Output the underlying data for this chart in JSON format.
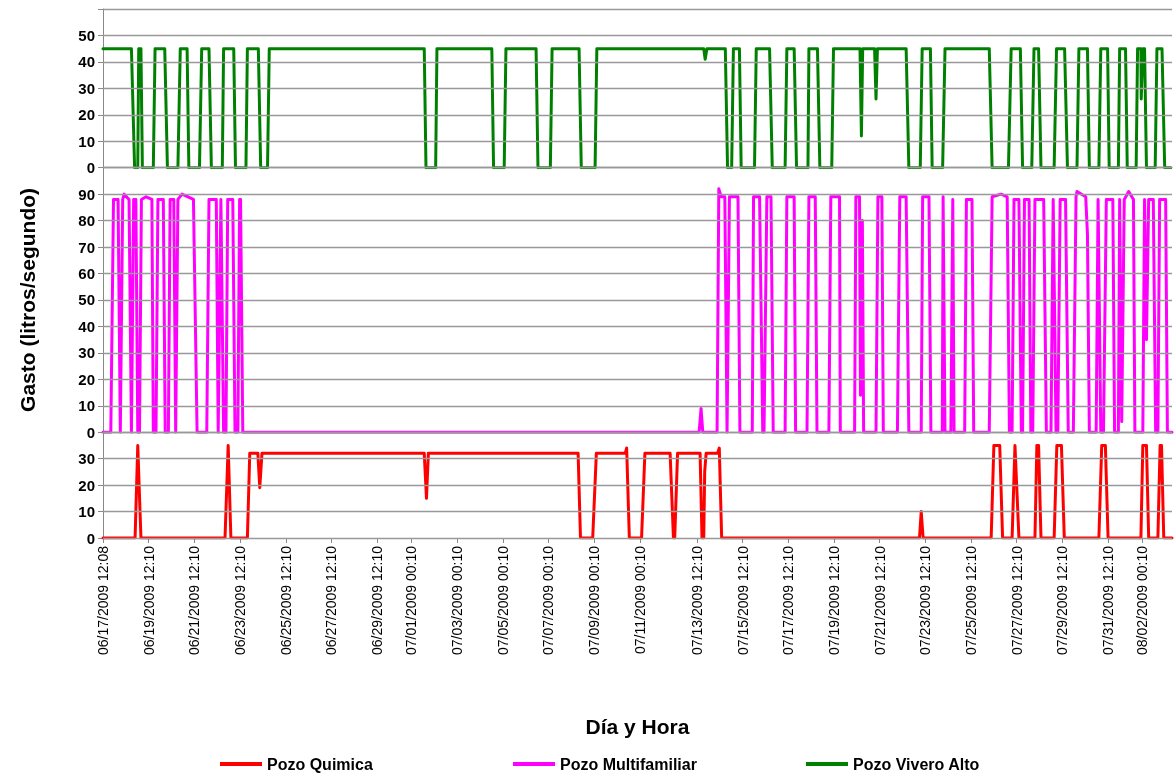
{
  "chart_data": [
    {
      "type": "line",
      "legend": "bottom",
      "grid": "y",
      "tick_labels": "y",
      "xlim": [
        "2009-06-17T12:08",
        "2009-08-03T07:20"
      ],
      "ylim": [
        0,
        60
      ],
      "yticks": [
        0,
        10,
        20,
        30,
        40,
        50,
        {
          "value": 60,
          "label": null
        }
      ],
      "series": [
        {
          "name": "Pozo Vivero Alto",
          "color": "#008000",
          "x": [
            "2009-06-17T12:08",
            "2009-06-18T18:00",
            "2009-06-18T21:20",
            "2009-06-19T00:40",
            "2009-06-19T01:40",
            "2009-06-19T04:00",
            "2009-06-19T05:30",
            "2009-06-19T17:00",
            "2009-06-19T18:50",
            "2009-06-20T05:00",
            "2009-06-20T07:50",
            "2009-06-20T18:50",
            "2009-06-20T21:20",
            "2009-06-21T04:30",
            "2009-06-21T06:20",
            "2009-06-21T17:30",
            "2009-06-21T19:50",
            "2009-06-22T03:30",
            "2009-06-22T06:00",
            "2009-06-22T17:30",
            "2009-06-22T18:50",
            "2009-06-23T05:30",
            "2009-06-23T07:20",
            "2009-06-23T18:20",
            "2009-06-23T19:50",
            "2009-06-24T07:20",
            "2009-06-24T09:50",
            "2009-06-24T17:00",
            "2009-06-24T18:50",
            "2009-07-01T13:40",
            "2009-07-01T15:30",
            "2009-07-02T01:40",
            "2009-07-02T03:00",
            "2009-07-04T12:40",
            "2009-07-04T14:30",
            "2009-07-05T01:40",
            "2009-07-05T03:30",
            "2009-07-06T11:10",
            "2009-07-06T13:10",
            "2009-07-07T02:10",
            "2009-07-07T04:00",
            "2009-07-08T08:20",
            "2009-07-08T10:40",
            "2009-07-09T01:10",
            "2009-07-09T03:00",
            "2009-07-13T19:20",
            "2009-07-13T20:50",
            "2009-07-13T22:40",
            "2009-07-14T18:00",
            "2009-07-14T20:20",
            "2009-07-15T00:40",
            "2009-07-15T02:30",
            "2009-07-15T08:50",
            "2009-07-15T10:40",
            "2009-07-16T00:40",
            "2009-07-16T02:30",
            "2009-07-16T16:30",
            "2009-07-16T19:20",
            "2009-07-17T08:50",
            "2009-07-17T10:40",
            "2009-07-17T18:20",
            "2009-07-17T20:50",
            "2009-07-18T08:50",
            "2009-07-18T09:50",
            "2009-07-18T18:50",
            "2009-07-18T21:20",
            "2009-07-19T09:50",
            "2009-07-19T11:40",
            "2009-07-20T15:30",
            "2009-07-20T17:00",
            "2009-07-20T18:20",
            "2009-07-21T06:50",
            "2009-07-21T08:20",
            "2009-07-21T09:50",
            "2009-07-22T16:00",
            "2009-07-22T18:50",
            "2009-07-23T06:50",
            "2009-07-23T08:50",
            "2009-07-23T17:30",
            "2009-07-23T19:20",
            "2009-07-24T06:20",
            "2009-07-24T08:50",
            "2009-07-26T07:20",
            "2009-07-26T10:20",
            "2009-07-27T03:30",
            "2009-07-27T06:20",
            "2009-07-27T16:00",
            "2009-07-27T18:20",
            "2009-07-28T04:00",
            "2009-07-28T06:20",
            "2009-07-28T11:10",
            "2009-07-28T13:40",
            "2009-07-29T03:30",
            "2009-07-29T06:00",
            "2009-07-29T14:30",
            "2009-07-29T17:30",
            "2009-07-30T03:30",
            "2009-07-30T05:30",
            "2009-07-30T14:30",
            "2009-07-30T16:30",
            "2009-07-31T02:30",
            "2009-07-31T04:30",
            "2009-07-31T11:40",
            "2009-07-31T13:20",
            "2009-07-31T23:00",
            "2009-08-01T00:20",
            "2009-08-01T06:30",
            "2009-08-01T08:20",
            "2009-08-01T17:40",
            "2009-08-01T19:10",
            "2009-08-01T22:40",
            "2009-08-01T23:00",
            "2009-08-02T00:40",
            "2009-08-02T02:30",
            "2009-08-02T04:30",
            "2009-08-02T13:40",
            "2009-08-02T15:30",
            "2009-08-02T20:50",
            "2009-08-02T23:40",
            "2009-08-03T06:00"
          ],
          "values": [
            45,
            45,
            0,
            0,
            45,
            45,
            0,
            0,
            45,
            45,
            0,
            0,
            45,
            45,
            0,
            0,
            45,
            45,
            0,
            0,
            45,
            45,
            0,
            0,
            45,
            45,
            0,
            0,
            45,
            45,
            0,
            0,
            45,
            45,
            0,
            0,
            45,
            45,
            0,
            0,
            45,
            45,
            0,
            0,
            45,
            45,
            41,
            45,
            45,
            0,
            0,
            45,
            45,
            0,
            0,
            45,
            45,
            0,
            0,
            45,
            45,
            0,
            0,
            45,
            45,
            0,
            0,
            45,
            45,
            12,
            45,
            45,
            26,
            45,
            45,
            0,
            0,
            45,
            45,
            0,
            0,
            45,
            45,
            0,
            0,
            45,
            45,
            0,
            0,
            45,
            45,
            0,
            0,
            45,
            45,
            0,
            0,
            45,
            45,
            0,
            0,
            45,
            45,
            0,
            0,
            45,
            45,
            0,
            0,
            45,
            45,
            26,
            45,
            45,
            0,
            0,
            45,
            45,
            0,
            0
          ]
        }
      ]
    },
    {
      "type": "line",
      "legend": "bottom",
      "grid": "y",
      "tick_labels": "y",
      "ylabel": "Gasto (litros/segundo)",
      "xlim": [
        "2009-06-17T12:08",
        "2009-08-03T07:20"
      ],
      "ylim": [
        0,
        100
      ],
      "yticks": [
        0,
        10,
        20,
        30,
        40,
        50,
        60,
        70,
        80,
        90,
        {
          "value": 100,
          "label": null
        }
      ],
      "series": [
        {
          "name": "Pozo Multifamiliar",
          "color": "#ff00ff",
          "x": [
            "2009-06-17T12:08",
            "2009-06-17T20:20",
            "2009-06-17T23:10",
            "2009-06-18T04:00",
            "2009-06-18T06:20",
            "2009-06-18T08:50",
            "2009-06-18T10:20",
            "2009-06-18T15:30",
            "2009-06-18T18:00",
            "2009-06-18T20:20",
            "2009-06-18T22:40",
            "2009-06-19T00:40",
            "2009-06-19T02:30",
            "2009-06-19T04:30",
            "2009-06-19T09:20",
            "2009-06-19T15:30",
            "2009-06-19T17:00",
            "2009-06-19T19:50",
            "2009-06-19T21:50",
            "2009-06-20T03:30",
            "2009-06-20T05:30",
            "2009-06-20T08:50",
            "2009-06-20T10:40",
            "2009-06-20T14:30",
            "2009-06-20T16:30",
            "2009-06-20T18:50",
            "2009-06-20T23:10",
            "2009-06-21T11:10",
            "2009-06-21T15:00",
            "2009-06-22T01:10",
            "2009-06-22T03:30",
            "2009-06-22T11:10",
            "2009-06-22T13:10",
            "2009-06-22T16:00",
            "2009-06-22T18:50",
            "2009-06-22T21:20",
            "2009-06-22T23:10",
            "2009-06-23T04:30",
            "2009-06-23T06:50",
            "2009-06-23T09:50",
            "2009-06-23T11:40",
            "2009-06-23T12:40",
            "2009-06-23T15:00",
            "2009-07-13T14:30",
            "2009-07-13T16:30",
            "2009-07-13T18:20",
            "2009-07-14T09:20",
            "2009-07-14T11:10",
            "2009-07-14T13:40",
            "2009-07-14T17:30",
            "2009-07-14T19:50",
            "2009-07-14T22:20",
            "2009-07-15T07:20",
            "2009-07-15T09:20",
            "2009-07-15T22:20",
            "2009-07-15T23:40",
            "2009-07-16T06:00",
            "2009-07-16T09:20",
            "2009-07-16T10:40",
            "2009-07-16T13:40",
            "2009-07-16T18:00",
            "2009-07-16T20:20",
            "2009-07-17T08:50",
            "2009-07-17T10:40",
            "2009-07-17T18:20",
            "2009-07-17T19:50",
            "2009-07-18T07:50",
            "2009-07-18T09:50",
            "2009-07-18T16:30",
            "2009-07-18T18:20",
            "2009-07-19T06:50",
            "2009-07-19T08:50",
            "2009-07-19T18:00",
            "2009-07-19T18:50",
            "2009-07-20T09:50",
            "2009-07-20T11:10",
            "2009-07-20T15:00",
            "2009-07-20T16:00",
            "2009-07-20T18:00",
            "2009-07-20T19:20",
            "2009-07-21T08:20",
            "2009-07-21T10:20",
            "2009-07-21T14:30",
            "2009-07-21T16:00",
            "2009-07-22T06:50",
            "2009-07-22T09:20",
            "2009-07-22T16:00",
            "2009-07-22T18:50",
            "2009-07-23T07:50",
            "2009-07-23T09:20",
            "2009-07-23T16:00",
            "2009-07-23T18:00",
            "2009-07-24T06:00",
            "2009-07-24T06:50",
            "2009-07-24T08:50",
            "2009-07-24T15:00",
            "2009-07-24T17:00",
            "2009-07-24T18:20",
            "2009-07-25T05:30",
            "2009-07-25T07:20",
            "2009-07-25T13:10",
            "2009-07-25T15:00",
            "2009-07-26T07:20",
            "2009-07-26T10:20",
            "2009-07-26T19:50",
            "2009-07-27T02:10",
            "2009-07-27T04:30",
            "2009-07-27T07:20",
            "2009-07-27T09:20",
            "2009-07-27T14:30",
            "2009-07-27T17:00",
            "2009-07-27T18:20",
            "2009-07-27T20:20",
            "2009-07-28T01:10",
            "2009-07-28T03:00",
            "2009-07-28T05:00",
            "2009-07-28T07:20",
            "2009-07-28T16:30",
            "2009-07-28T19:20",
            "2009-07-29T00:10",
            "2009-07-29T02:30",
            "2009-07-29T05:30",
            "2009-07-29T07:20",
            "2009-07-29T09:50",
            "2009-07-29T15:30",
            "2009-07-29T18:20",
            "2009-07-29T23:40",
            "2009-07-30T02:30",
            "2009-07-30T03:30",
            "2009-07-30T12:40",
            "2009-07-30T14:30",
            "2009-07-30T16:30",
            "2009-07-30T23:40",
            "2009-07-31T01:40",
            "2009-07-31T04:30",
            "2009-07-31T07:20",
            "2009-07-31T10:20",
            "2009-07-31T17:10",
            "2009-07-31T19:00",
            "2009-07-31T23:00",
            "2009-08-01T00:20",
            "2009-08-01T02:30",
            "2009-08-01T05:10",
            "2009-08-01T09:50",
            "2009-08-01T14:50",
            "2009-08-01T16:20",
            "2009-08-02T00:40",
            "2009-08-02T02:30",
            "2009-08-02T04:30",
            "2009-08-02T06:50",
            "2009-08-02T11:40",
            "2009-08-02T14:10",
            "2009-08-02T16:30",
            "2009-08-02T18:20",
            "2009-08-03T00:40",
            "2009-08-03T02:30",
            "2009-08-03T07:20"
          ],
          "values": [
            0,
            0,
            88,
            88,
            0,
            88,
            90,
            88,
            0,
            88,
            88,
            0,
            0,
            88,
            89,
            88,
            0,
            0,
            88,
            88,
            0,
            0,
            88,
            88,
            0,
            88,
            90,
            88,
            0,
            0,
            88,
            88,
            0,
            88,
            0,
            0,
            88,
            88,
            0,
            0,
            88,
            88,
            0,
            0,
            9,
            0,
            0,
            92,
            89,
            89,
            0,
            89,
            89,
            0,
            0,
            89,
            89,
            0,
            0,
            89,
            89,
            0,
            0,
            89,
            89,
            0,
            0,
            89,
            89,
            0,
            0,
            89,
            89,
            0,
            0,
            89,
            89,
            14,
            80,
            0,
            0,
            89,
            89,
            0,
            0,
            89,
            89,
            0,
            0,
            89,
            89,
            0,
            0,
            89,
            0,
            0,
            88,
            0,
            0,
            88,
            88,
            0,
            0,
            89,
            90,
            89,
            0,
            0,
            88,
            88,
            0,
            0,
            88,
            88,
            0,
            0,
            88,
            88,
            0,
            0,
            88,
            0,
            0,
            88,
            88,
            0,
            0,
            89,
            91,
            89,
            75,
            0,
            0,
            88,
            0,
            0,
            88,
            88,
            0,
            0,
            88,
            4,
            88,
            91,
            88,
            0,
            0,
            88,
            35,
            88,
            88,
            0,
            0,
            88,
            88,
            0,
            0
          ]
        }
      ]
    },
    {
      "type": "line",
      "legend": "bottom",
      "grid": "y",
      "xlabel": "Día y Hora",
      "xlim": [
        "2009-06-17T12:08",
        "2009-08-03T07:20"
      ],
      "ylim": [
        0,
        40
      ],
      "yticks": [
        0,
        10,
        20,
        30,
        {
          "value": 40,
          "label": null
        }
      ],
      "xticks": [
        {
          "value": "2009-06-17T12:08",
          "label": "06/17/2009 12:08"
        },
        {
          "value": "2009-06-19T12:10",
          "label": "06/19/2009 12:10"
        },
        {
          "value": "2009-06-21T12:10",
          "label": "06/21/2009 12:10"
        },
        {
          "value": "2009-06-23T12:10",
          "label": "06/23/2009 12:10"
        },
        {
          "value": "2009-06-25T12:10",
          "label": "06/25/2009 12:10"
        },
        {
          "value": "2009-06-27T12:10",
          "label": "06/27/2009 12:10"
        },
        {
          "value": "2009-06-29T12:10",
          "label": "06/29/2009 12:10"
        },
        {
          "value": "2009-07-01T00:10",
          "label": "07/01/2009 00:10"
        },
        {
          "value": "2009-07-03T00:10",
          "label": "07/03/2009 00:10"
        },
        {
          "value": "2009-07-05T00:10",
          "label": "07/05/2009 00:10"
        },
        {
          "value": "2009-07-07T00:10",
          "label": "07/07/2009 00:10"
        },
        {
          "value": "2009-07-09T00:10",
          "label": "07/09/2009 00:10"
        },
        {
          "value": "2009-07-11T00:10",
          "label": "07/11/2009 00:10"
        },
        {
          "value": "2009-07-13T12:10",
          "label": "07/13/2009 12:10"
        },
        {
          "value": "2009-07-15T12:10",
          "label": "07/15/2009 12:10"
        },
        {
          "value": "2009-07-17T12:10",
          "label": "07/17/2009 12:10"
        },
        {
          "value": "2009-07-19T12:10",
          "label": "07/19/2009 12:10"
        },
        {
          "value": "2009-07-21T12:10",
          "label": "07/21/2009 12:10"
        },
        {
          "value": "2009-07-23T12:10",
          "label": "07/23/2009 12:10"
        },
        {
          "value": "2009-07-25T12:10",
          "label": "07/25/2009 12:10"
        },
        {
          "value": "2009-07-27T12:10",
          "label": "07/27/2009 12:10"
        },
        {
          "value": "2009-07-29T12:10",
          "label": "07/29/2009 12:10"
        },
        {
          "value": "2009-07-31T12:10",
          "label": "07/31/2009 12:10"
        },
        {
          "value": "2009-08-02T00:10",
          "label": "08/02/2009 00:10"
        }
      ],
      "series": [
        {
          "name": "Pozo Quimica",
          "color": "#ff0000",
          "x": [
            "2009-06-17T12:08",
            "2009-06-18T21:50",
            "2009-06-19T00:40",
            "2009-06-19T04:00",
            "2009-06-22T20:20",
            "2009-06-22T23:40",
            "2009-06-23T02:30",
            "2009-06-23T19:50",
            "2009-06-23T22:20",
            "2009-06-24T06:50",
            "2009-06-24T08:50",
            "2009-06-24T11:10",
            "2009-07-01T13:40",
            "2009-07-01T16:00",
            "2009-07-01T18:00",
            "2009-07-08T07:20",
            "2009-07-08T09:50",
            "2009-07-08T22:40",
            "2009-07-09T02:30",
            "2009-07-10T08:50",
            "2009-07-10T10:20",
            "2009-07-10T13:10",
            "2009-07-11T02:00",
            "2009-07-11T05:30",
            "2009-07-12T08:00",
            "2009-07-12T11:30",
            "2009-07-12T12:50",
            "2009-07-12T15:50",
            "2009-07-13T15:30",
            "2009-07-13T17:30",
            "2009-07-13T19:20",
            "2009-07-13T20:20",
            "2009-07-13T21:50",
            "2009-07-14T09:50",
            "2009-07-14T11:40",
            "2009-07-14T14:10",
            "2009-07-23T06:00",
            "2009-07-23T07:50",
            "2009-07-23T09:50",
            "2009-07-26T09:20",
            "2009-07-26T12:10",
            "2009-07-26T18:20",
            "2009-07-26T21:20",
            "2009-07-27T07:20",
            "2009-07-27T10:20",
            "2009-07-27T14:30",
            "2009-07-28T07:20",
            "2009-07-28T09:20",
            "2009-07-28T11:10",
            "2009-07-28T13:40",
            "2009-07-29T03:30",
            "2009-07-29T06:20",
            "2009-07-29T11:10",
            "2009-07-29T14:10",
            "2009-07-31T02:30",
            "2009-07-31T05:30",
            "2009-07-31T09:20",
            "2009-07-31T12:10",
            "2009-08-01T22:40",
            "2009-08-02T00:40",
            "2009-08-02T04:30",
            "2009-08-02T06:50",
            "2009-08-02T16:30",
            "2009-08-02T18:50",
            "2009-08-02T20:20",
            "2009-08-02T22:40",
            "2009-08-03T07:20"
          ],
          "values": [
            0,
            0,
            35,
            0,
            0,
            35,
            0,
            0,
            32,
            32,
            19,
            32,
            32,
            15,
            32,
            32,
            0,
            0,
            32,
            32,
            34,
            0,
            0,
            32,
            32,
            0,
            0,
            32,
            32,
            0,
            0,
            25,
            32,
            32,
            34,
            0,
            0,
            10,
            0,
            0,
            35,
            35,
            0,
            0,
            35,
            0,
            0,
            35,
            35,
            0,
            0,
            35,
            35,
            0,
            0,
            35,
            35,
            0,
            0,
            35,
            35,
            0,
            0,
            35,
            35,
            0,
            0
          ]
        }
      ]
    }
  ]
}
